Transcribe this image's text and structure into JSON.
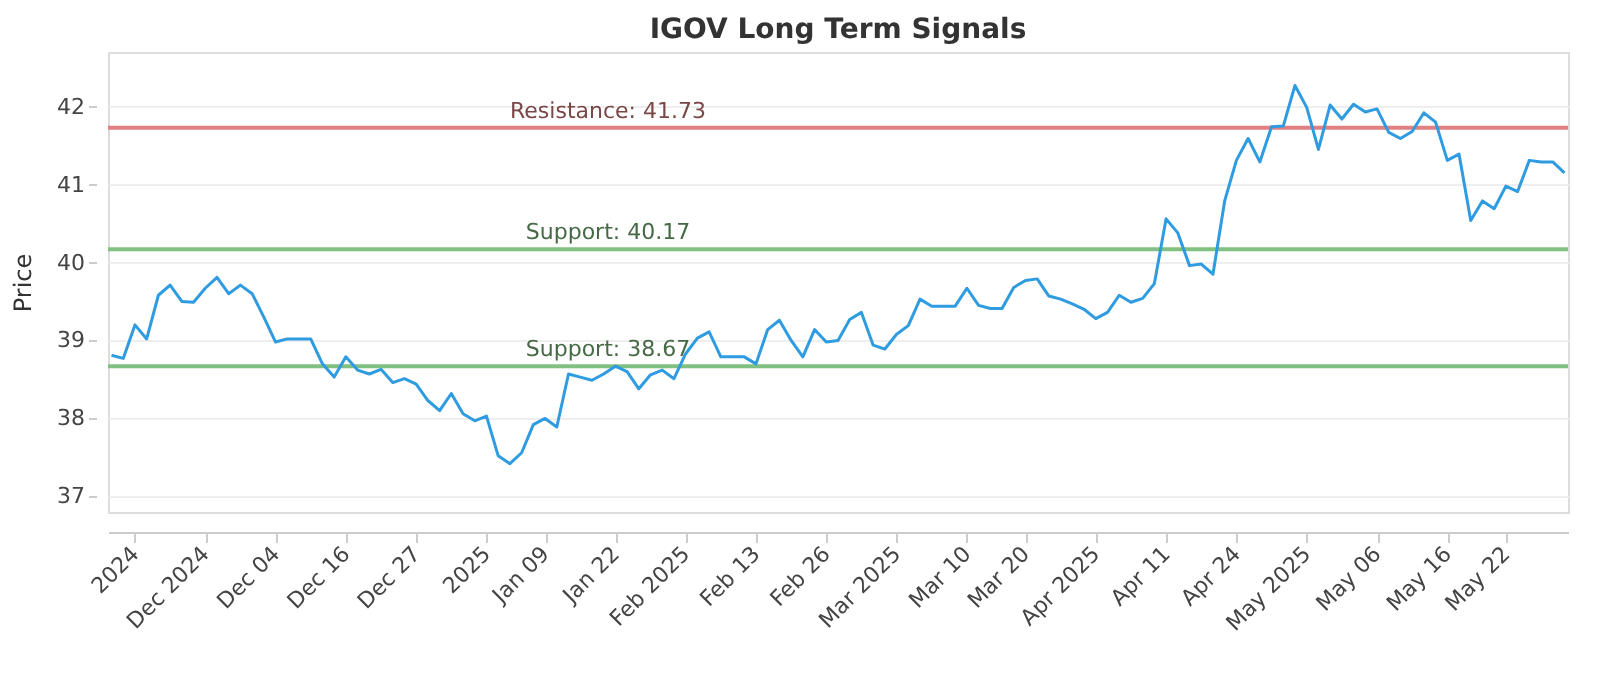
{
  "chart_data": {
    "type": "line",
    "title": "IGOV Long Term Signals",
    "ylabel": "Price",
    "categories": [
      null,
      null,
      "2024",
      null,
      null,
      null,
      null,
      null,
      "Dec 2024",
      null,
      null,
      null,
      null,
      null,
      "Dec 04",
      null,
      null,
      null,
      null,
      null,
      "Dec 16",
      null,
      null,
      null,
      null,
      null,
      "Dec 27",
      null,
      null,
      null,
      null,
      null,
      "2025",
      null,
      null,
      null,
      null,
      "Jan 09",
      null,
      null,
      null,
      null,
      null,
      "Jan 22",
      null,
      null,
      null,
      null,
      null,
      "Feb 2025",
      null,
      null,
      null,
      null,
      null,
      "Feb 13",
      null,
      null,
      null,
      null,
      null,
      "Feb 26",
      null,
      null,
      null,
      null,
      null,
      "Mar 2025",
      null,
      null,
      null,
      null,
      null,
      "Mar 10",
      null,
      null,
      null,
      null,
      "Mar 20",
      null,
      null,
      null,
      null,
      null,
      "Apr 2025",
      null,
      null,
      null,
      null,
      null,
      "Apr 11",
      null,
      null,
      null,
      null,
      null,
      "Apr 24",
      null,
      null,
      null,
      null,
      null,
      "May 2025",
      null,
      null,
      null,
      null,
      null,
      "May 06",
      null,
      null,
      null,
      null,
      null,
      "May 16",
      null,
      null,
      null,
      null,
      "May 22",
      null,
      null,
      null,
      null,
      null
    ],
    "ylim": [
      36.8,
      42.7
    ],
    "yticks": [
      37,
      38,
      39,
      40,
      41,
      42
    ],
    "grid": "y",
    "marker": "none",
    "line_style": "solid",
    "ref_lines": [
      {
        "axis": "y",
        "value": 41.73,
        "label": "Resistance: 41.73",
        "color": "#e08080"
      },
      {
        "axis": "y",
        "value": 40.17,
        "label": "Support: 40.17",
        "color": "#80c080"
      },
      {
        "axis": "y",
        "value": 38.67,
        "label": "Support: 38.67",
        "color": "#80c080"
      }
    ],
    "series": [
      {
        "color": "#2f9be0",
        "values": [
          38.81,
          38.77,
          39.2,
          39.02,
          39.58,
          39.71,
          39.5,
          39.49,
          39.67,
          39.81,
          39.6,
          39.71,
          39.6,
          39.3,
          38.98,
          39.02,
          39.02,
          39.02,
          38.7,
          38.53,
          38.79,
          38.62,
          38.57,
          38.63,
          38.46,
          38.51,
          38.44,
          38.23,
          38.1,
          38.32,
          38.06,
          37.97,
          38.03,
          37.52,
          37.42,
          37.56,
          37.92,
          38.0,
          37.89,
          38.57,
          38.53,
          38.49,
          38.57,
          38.67,
          38.6,
          38.38,
          38.56,
          38.62,
          38.51,
          38.83,
          39.03,
          39.11,
          38.79,
          38.79,
          38.79,
          38.7,
          39.14,
          39.26,
          39.0,
          38.79,
          39.14,
          38.98,
          39.0,
          39.27,
          39.36,
          38.94,
          38.89,
          39.08,
          39.19,
          39.53,
          39.44,
          39.44,
          39.44,
          39.67,
          39.45,
          39.41,
          39.41,
          39.68,
          39.77,
          39.79,
          39.57,
          39.53,
          39.47,
          39.4,
          39.28,
          39.36,
          39.58,
          39.49,
          39.54,
          39.73,
          40.56,
          40.38,
          39.96,
          39.98,
          39.85,
          40.79,
          41.31,
          41.59,
          41.29,
          41.74,
          41.75,
          42.27,
          41.99,
          41.45,
          42.02,
          41.84,
          42.03,
          41.93,
          41.97,
          41.67,
          41.59,
          41.68,
          41.92,
          41.8,
          41.31,
          41.39,
          40.54,
          40.79,
          40.69,
          40.98,
          40.91,
          41.31,
          41.29,
          41.29,
          41.15
        ]
      }
    ]
  }
}
